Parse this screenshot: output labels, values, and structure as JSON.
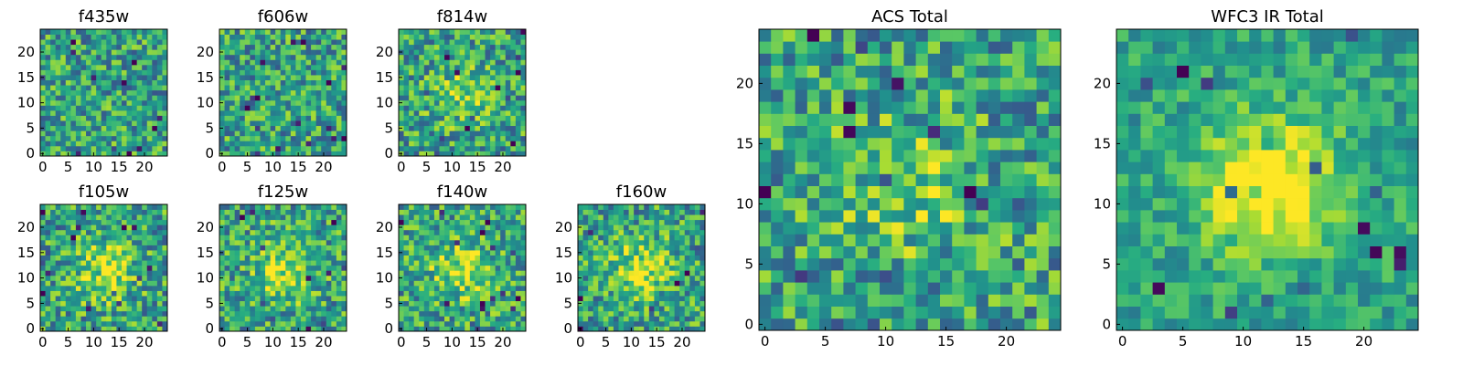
{
  "chart_data": [
    {
      "type": "heatmap",
      "title": "f435w",
      "colormap": "viridis",
      "grid_size": [
        25,
        25
      ],
      "xlim": [
        0,
        24
      ],
      "ylim": [
        0,
        24
      ],
      "xticks": [
        "0",
        "5",
        "10",
        "15",
        "20"
      ],
      "yticks": [
        "0",
        "5",
        "10",
        "15",
        "20"
      ],
      "grid": false,
      "pattern": "noise",
      "values": []
    },
    {
      "type": "heatmap",
      "title": "f606w",
      "colormap": "viridis",
      "grid_size": [
        25,
        25
      ],
      "xlim": [
        0,
        24
      ],
      "ylim": [
        0,
        24
      ],
      "xticks": [
        "0",
        "5",
        "10",
        "15",
        "20"
      ],
      "yticks": [
        "0",
        "5",
        "10",
        "15",
        "20"
      ],
      "grid": false,
      "pattern": "noise",
      "values": []
    },
    {
      "type": "heatmap",
      "title": "f814w",
      "colormap": "viridis",
      "grid_size": [
        25,
        25
      ],
      "xlim": [
        0,
        24
      ],
      "ylim": [
        0,
        24
      ],
      "xticks": [
        "0",
        "5",
        "10",
        "15",
        "20"
      ],
      "yticks": [
        "0",
        "5",
        "10",
        "15",
        "20"
      ],
      "grid": false,
      "pattern": "noise-with-faint-central-source",
      "values": []
    },
    {
      "type": "heatmap",
      "title": "f105w",
      "colormap": "viridis",
      "grid_size": [
        25,
        25
      ],
      "xlim": [
        0,
        24
      ],
      "ylim": [
        0,
        24
      ],
      "xticks": [
        "0",
        "5",
        "10",
        "15",
        "20"
      ],
      "yticks": [
        "0",
        "5",
        "10",
        "15",
        "20"
      ],
      "grid": false,
      "pattern": "central-source",
      "values": []
    },
    {
      "type": "heatmap",
      "title": "f125w",
      "colormap": "viridis",
      "grid_size": [
        25,
        25
      ],
      "xlim": [
        0,
        24
      ],
      "ylim": [
        0,
        24
      ],
      "xticks": [
        "0",
        "5",
        "10",
        "15",
        "20"
      ],
      "yticks": [
        "0",
        "5",
        "10",
        "15",
        "20"
      ],
      "grid": false,
      "pattern": "central-source",
      "values": []
    },
    {
      "type": "heatmap",
      "title": "f140w",
      "colormap": "viridis",
      "grid_size": [
        25,
        25
      ],
      "xlim": [
        0,
        24
      ],
      "ylim": [
        0,
        24
      ],
      "xticks": [
        "0",
        "5",
        "10",
        "15",
        "20"
      ],
      "yticks": [
        "0",
        "5",
        "10",
        "15",
        "20"
      ],
      "grid": false,
      "pattern": "central-source",
      "values": []
    },
    {
      "type": "heatmap",
      "title": "f160w",
      "colormap": "viridis",
      "grid_size": [
        25,
        25
      ],
      "xlim": [
        0,
        24
      ],
      "ylim": [
        0,
        24
      ],
      "xticks": [
        "0",
        "5",
        "10",
        "15",
        "20"
      ],
      "yticks": [
        "0",
        "5",
        "10",
        "15",
        "20"
      ],
      "grid": false,
      "pattern": "central-source",
      "values": []
    },
    {
      "type": "heatmap",
      "title": "ACS Total",
      "colormap": "viridis",
      "grid_size": [
        25,
        25
      ],
      "xlim": [
        0,
        24
      ],
      "ylim": [
        0,
        24
      ],
      "xticks": [
        "0",
        "5",
        "10",
        "15",
        "20"
      ],
      "yticks": [
        "0",
        "5",
        "10",
        "15",
        "20"
      ],
      "grid": false,
      "pattern": "noise-with-faint-central-source",
      "values": []
    },
    {
      "type": "heatmap",
      "title": "WFC3 IR Total",
      "colormap": "viridis",
      "grid_size": [
        25,
        25
      ],
      "xlim": [
        0,
        24
      ],
      "ylim": [
        0,
        24
      ],
      "xticks": [
        "0",
        "5",
        "10",
        "15",
        "20"
      ],
      "yticks": [
        "0",
        "5",
        "10",
        "15",
        "20"
      ],
      "grid": false,
      "pattern": "strong-central-source",
      "values": []
    }
  ]
}
